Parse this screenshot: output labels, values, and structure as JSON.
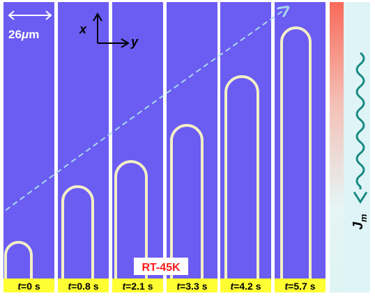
{
  "scale_bar": {
    "value": "26",
    "mu": "μ",
    "unit": "m"
  },
  "axes": {
    "x": "x",
    "y": "y"
  },
  "condition": "RT-45K",
  "current": {
    "symbol": "J",
    "subscript": "m"
  },
  "panels": [
    {
      "var": "t",
      "text": "=0 s"
    },
    {
      "var": "t",
      "text": "=0.8 s"
    },
    {
      "var": "t",
      "text": "=2.1 s"
    },
    {
      "var": "t",
      "text": "=3.3 s"
    },
    {
      "var": "t",
      "text": "=4.2 s"
    },
    {
      "var": "t",
      "text": "=5.7 s"
    }
  ]
}
